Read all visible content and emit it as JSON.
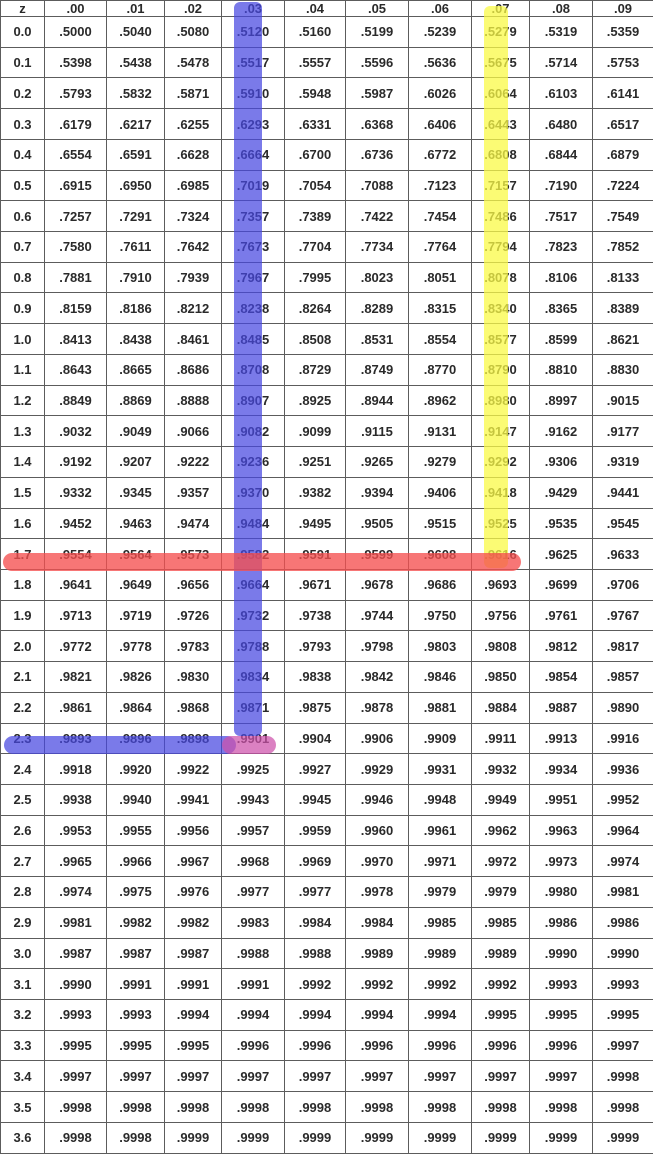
{
  "table": {
    "header": [
      "z",
      ".00",
      ".01",
      ".02",
      ".03",
      ".04",
      ".05",
      ".06",
      ".07",
      ".08",
      ".09"
    ],
    "rows": [
      [
        "0.0",
        ".5000",
        ".5040",
        ".5080",
        ".5120",
        ".5160",
        ".5199",
        ".5239",
        ".5279",
        ".5319",
        ".5359"
      ],
      [
        "0.1",
        ".5398",
        ".5438",
        ".5478",
        ".5517",
        ".5557",
        ".5596",
        ".5636",
        ".5675",
        ".5714",
        ".5753"
      ],
      [
        "0.2",
        ".5793",
        ".5832",
        ".5871",
        ".5910",
        ".5948",
        ".5987",
        ".6026",
        ".6064",
        ".6103",
        ".6141"
      ],
      [
        "0.3",
        ".6179",
        ".6217",
        ".6255",
        ".6293",
        ".6331",
        ".6368",
        ".6406",
        ".6443",
        ".6480",
        ".6517"
      ],
      [
        "0.4",
        ".6554",
        ".6591",
        ".6628",
        ".6664",
        ".6700",
        ".6736",
        ".6772",
        ".6808",
        ".6844",
        ".6879"
      ],
      [
        "0.5",
        ".6915",
        ".6950",
        ".6985",
        ".7019",
        ".7054",
        ".7088",
        ".7123",
        ".7157",
        ".7190",
        ".7224"
      ],
      [
        "0.6",
        ".7257",
        ".7291",
        ".7324",
        ".7357",
        ".7389",
        ".7422",
        ".7454",
        ".7486",
        ".7517",
        ".7549"
      ],
      [
        "0.7",
        ".7580",
        ".7611",
        ".7642",
        ".7673",
        ".7704",
        ".7734",
        ".7764",
        ".7794",
        ".7823",
        ".7852"
      ],
      [
        "0.8",
        ".7881",
        ".7910",
        ".7939",
        ".7967",
        ".7995",
        ".8023",
        ".8051",
        ".8078",
        ".8106",
        ".8133"
      ],
      [
        "0.9",
        ".8159",
        ".8186",
        ".8212",
        ".8238",
        ".8264",
        ".8289",
        ".8315",
        ".8340",
        ".8365",
        ".8389"
      ],
      [
        "1.0",
        ".8413",
        ".8438",
        ".8461",
        ".8485",
        ".8508",
        ".8531",
        ".8554",
        ".8577",
        ".8599",
        ".8621"
      ],
      [
        "1.1",
        ".8643",
        ".8665",
        ".8686",
        ".8708",
        ".8729",
        ".8749",
        ".8770",
        ".8790",
        ".8810",
        ".8830"
      ],
      [
        "1.2",
        ".8849",
        ".8869",
        ".8888",
        ".8907",
        ".8925",
        ".8944",
        ".8962",
        ".8980",
        ".8997",
        ".9015"
      ],
      [
        "1.3",
        ".9032",
        ".9049",
        ".9066",
        ".9082",
        ".9099",
        ".9115",
        ".9131",
        ".9147",
        ".9162",
        ".9177"
      ],
      [
        "1.4",
        ".9192",
        ".9207",
        ".9222",
        ".9236",
        ".9251",
        ".9265",
        ".9279",
        ".9292",
        ".9306",
        ".9319"
      ],
      [
        "1.5",
        ".9332",
        ".9345",
        ".9357",
        ".9370",
        ".9382",
        ".9394",
        ".9406",
        ".9418",
        ".9429",
        ".9441"
      ],
      [
        "1.6",
        ".9452",
        ".9463",
        ".9474",
        ".9484",
        ".9495",
        ".9505",
        ".9515",
        ".9525",
        ".9535",
        ".9545"
      ],
      [
        "1.7",
        ".9554",
        ".9564",
        ".9573",
        ".9582",
        ".9591",
        ".9599",
        ".9608",
        ".9616",
        ".9625",
        ".9633"
      ],
      [
        "1.8",
        ".9641",
        ".9649",
        ".9656",
        ".9664",
        ".9671",
        ".9678",
        ".9686",
        ".9693",
        ".9699",
        ".9706"
      ],
      [
        "1.9",
        ".9713",
        ".9719",
        ".9726",
        ".9732",
        ".9738",
        ".9744",
        ".9750",
        ".9756",
        ".9761",
        ".9767"
      ],
      [
        "2.0",
        ".9772",
        ".9778",
        ".9783",
        ".9788",
        ".9793",
        ".9798",
        ".9803",
        ".9808",
        ".9812",
        ".9817"
      ],
      [
        "2.1",
        ".9821",
        ".9826",
        ".9830",
        ".9834",
        ".9838",
        ".9842",
        ".9846",
        ".9850",
        ".9854",
        ".9857"
      ],
      [
        "2.2",
        ".9861",
        ".9864",
        ".9868",
        ".9871",
        ".9875",
        ".9878",
        ".9881",
        ".9884",
        ".9887",
        ".9890"
      ],
      [
        "2.3",
        ".9893",
        ".9896",
        ".9898",
        ".9901",
        ".9904",
        ".9906",
        ".9909",
        ".9911",
        ".9913",
        ".9916"
      ],
      [
        "2.4",
        ".9918",
        ".9920",
        ".9922",
        ".9925",
        ".9927",
        ".9929",
        ".9931",
        ".9932",
        ".9934",
        ".9936"
      ],
      [
        "2.5",
        ".9938",
        ".9940",
        ".9941",
        ".9943",
        ".9945",
        ".9946",
        ".9948",
        ".9949",
        ".9951",
        ".9952"
      ],
      [
        "2.6",
        ".9953",
        ".9955",
        ".9956",
        ".9957",
        ".9959",
        ".9960",
        ".9961",
        ".9962",
        ".9963",
        ".9964"
      ],
      [
        "2.7",
        ".9965",
        ".9966",
        ".9967",
        ".9968",
        ".9969",
        ".9970",
        ".9971",
        ".9972",
        ".9973",
        ".9974"
      ],
      [
        "2.8",
        ".9974",
        ".9975",
        ".9976",
        ".9977",
        ".9977",
        ".9978",
        ".9979",
        ".9979",
        ".9980",
        ".9981"
      ],
      [
        "2.9",
        ".9981",
        ".9982",
        ".9982",
        ".9983",
        ".9984",
        ".9984",
        ".9985",
        ".9985",
        ".9986",
        ".9986"
      ],
      [
        "3.0",
        ".9987",
        ".9987",
        ".9987",
        ".9988",
        ".9988",
        ".9989",
        ".9989",
        ".9989",
        ".9990",
        ".9990"
      ],
      [
        "3.1",
        ".9990",
        ".9991",
        ".9991",
        ".9991",
        ".9992",
        ".9992",
        ".9992",
        ".9992",
        ".9993",
        ".9993"
      ],
      [
        "3.2",
        ".9993",
        ".9993",
        ".9994",
        ".9994",
        ".9994",
        ".9994",
        ".9994",
        ".9995",
        ".9995",
        ".9995"
      ],
      [
        "3.3",
        ".9995",
        ".9995",
        ".9995",
        ".9996",
        ".9996",
        ".9996",
        ".9996",
        ".9996",
        ".9996",
        ".9997"
      ],
      [
        "3.4",
        ".9997",
        ".9997",
        ".9997",
        ".9997",
        ".9997",
        ".9997",
        ".9997",
        ".9997",
        ".9997",
        ".9998"
      ],
      [
        "3.5",
        ".9998",
        ".9998",
        ".9998",
        ".9998",
        ".9998",
        ".9998",
        ".9998",
        ".9998",
        ".9998",
        ".9998"
      ],
      [
        "3.6",
        ".9998",
        ".9998",
        ".9999",
        ".9999",
        ".9999",
        ".9999",
        ".9999",
        ".9999",
        ".9999",
        ".9999"
      ]
    ]
  },
  "highlights": {
    "blue": "#4646e1",
    "yellow": "#fafa46",
    "red": "#f55050",
    "purple": "#cd50aa"
  }
}
